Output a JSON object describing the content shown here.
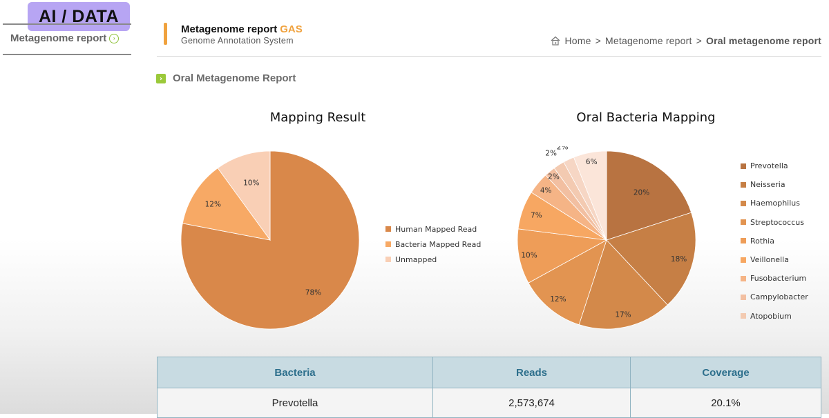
{
  "badge": "AI / DATA",
  "sidebar": {
    "item_label": "Metagenome report"
  },
  "header": {
    "title": "Metagenome report",
    "title_accent": "GAS",
    "subtitle": "Genome Annotation System"
  },
  "breadcrumb": {
    "home": "Home",
    "separator": ">",
    "level1": "Metagenome report",
    "current": "Oral metagenome report"
  },
  "section_title": "Oral Metagenome Report",
  "colors": {
    "accent": "#f0a23e",
    "green": "#9bc93a",
    "table_header_text": "#2d6f8c"
  },
  "chart_data": [
    {
      "type": "pie",
      "title": "Mapping Result",
      "legend_position": "right",
      "slices": [
        {
          "label": "Human Mapped Read",
          "value": 78,
          "text": "78%",
          "color": "#d9884a"
        },
        {
          "label": "Bacteria Mapped Read",
          "value": 12,
          "text": "12%",
          "color": "#f7a965"
        },
        {
          "label": "Unmapped",
          "value": 10,
          "text": "10%",
          "color": "#f9cfb5"
        }
      ]
    },
    {
      "type": "pie",
      "title": "Oral Bacteria Mapping",
      "legend_position": "right",
      "legend": [
        "Prevotella",
        "Neisseria",
        "Haemophilus",
        "Streptococcus",
        "Rothia",
        "Veillonella",
        "Fusobacterium",
        "Campylobacter",
        "Atopobium"
      ],
      "slices": [
        {
          "label": "Prevotella",
          "value": 20,
          "text": "20%",
          "color": "#b87341"
        },
        {
          "label": "Neisseria",
          "value": 18,
          "text": "18%",
          "color": "#c67f45"
        },
        {
          "label": "Haemophilus",
          "value": 17,
          "text": "17%",
          "color": "#d3894a"
        },
        {
          "label": "Streptococcus",
          "value": 12,
          "text": "12%",
          "color": "#e29451"
        },
        {
          "label": "Rothia",
          "value": 10,
          "text": "10%",
          "color": "#ee9d58"
        },
        {
          "label": "Veillonella",
          "value": 7,
          "text": "7%",
          "color": "#f7a762"
        },
        {
          "label": "Fusobacterium",
          "value": 4,
          "text": "4%",
          "color": "#f5b486"
        },
        {
          "label": "Campylobacter",
          "value": 2,
          "text": "2%",
          "color": "#f2bfa1"
        },
        {
          "label": "Atopobium",
          "value": 2,
          "text": "2%",
          "color": "#f3cab1"
        },
        {
          "label": "",
          "value": 2,
          "text": "2%",
          "color": "#f6d6c4"
        },
        {
          "label": "",
          "value": 6,
          "text": "6%",
          "color": "#fbe5d9"
        }
      ]
    }
  ],
  "table": {
    "headers": [
      "Bacteria",
      "Reads",
      "Coverage"
    ],
    "rows": [
      [
        "Prevotella",
        "2,573,674",
        "20.1%"
      ]
    ]
  }
}
